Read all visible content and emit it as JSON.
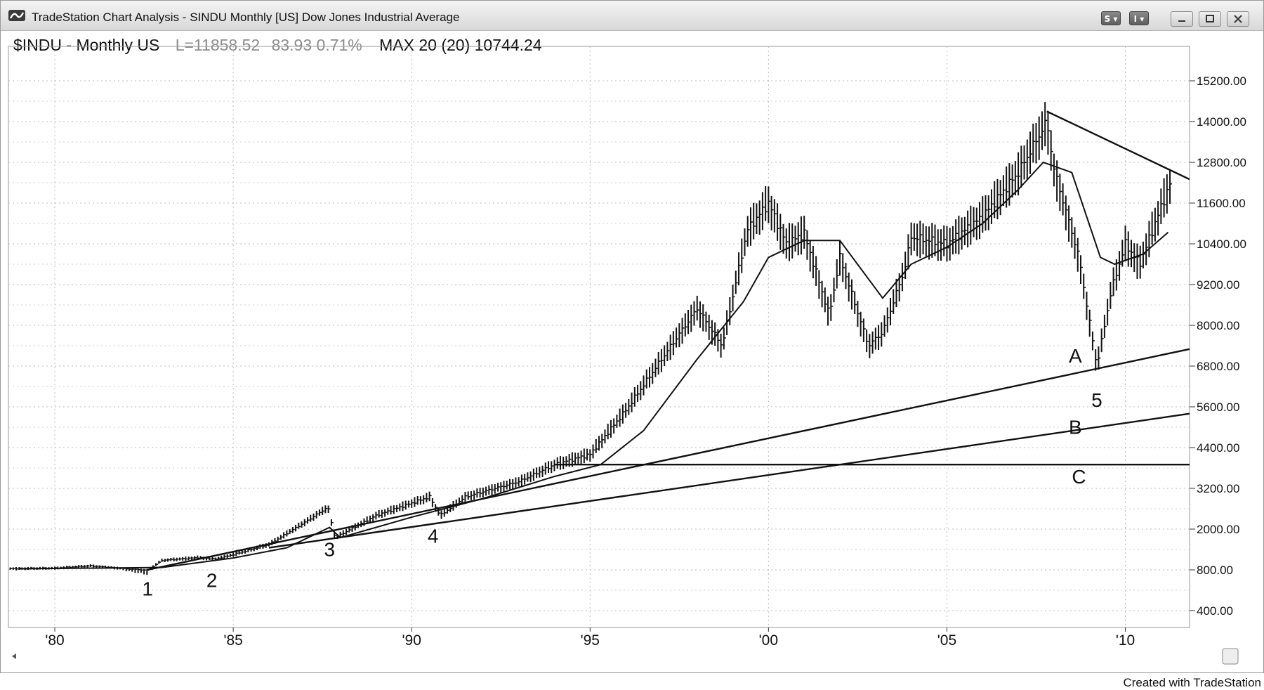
{
  "window": {
    "title": "TradeStation Chart Analysis - SINDU Monthly [US] Dow Jones Industrial Average",
    "toolbar_buttons": [
      "S",
      "I"
    ],
    "controls": [
      "minimize",
      "restore",
      "close"
    ]
  },
  "header": {
    "symbol": "$INDU - Monthly US",
    "last": "L=11858.52",
    "change": "83.93 0.71%",
    "indicator": "MAX 20 (20) 10744.24"
  },
  "footer": {
    "credit": "Created with TradeStation"
  },
  "chart_data": {
    "type": "line",
    "price_axis_labels": [
      "15200.00",
      "14000.00",
      "12800.00",
      "11600.00",
      "10400.00",
      "9200.00",
      "8000.00",
      "6800.00",
      "5600.00",
      "4400.00",
      "3200.00",
      "2000.00",
      "800.00",
      "400.00"
    ],
    "time_axis_labels": [
      "'80",
      "'85",
      "'90",
      "'95",
      "'00",
      "'05",
      "'10"
    ],
    "x_range": [
      1978.7,
      2011.8
    ],
    "series": [
      {
        "kind": "monthly price bars (high/low)",
        "points": [
          [
            1979.0,
            840
          ],
          [
            1980.0,
            850
          ],
          [
            1981.0,
            920
          ],
          [
            1982.0,
            830
          ],
          [
            1982.6,
            790
          ],
          [
            1983.0,
            1080
          ],
          [
            1984.0,
            1160
          ],
          [
            1984.5,
            1120
          ],
          [
            1985.0,
            1250
          ],
          [
            1986.0,
            1550
          ],
          [
            1987.0,
            2200
          ],
          [
            1987.65,
            2650
          ],
          [
            1987.85,
            1750
          ],
          [
            1989.0,
            2400
          ],
          [
            1990.5,
            2950
          ],
          [
            1990.8,
            2400
          ],
          [
            1991.5,
            2950
          ],
          [
            1993.0,
            3400
          ],
          [
            1994.0,
            3900
          ],
          [
            1995.0,
            4200
          ],
          [
            1996.0,
            5500
          ],
          [
            1997.0,
            7000
          ],
          [
            1998.0,
            8500
          ],
          [
            1998.7,
            7400
          ],
          [
            1999.4,
            10800
          ],
          [
            2000.0,
            11600
          ],
          [
            2000.5,
            10400
          ],
          [
            2001.0,
            10700
          ],
          [
            2001.7,
            8300
          ],
          [
            2002.0,
            10000
          ],
          [
            2002.8,
            7400
          ],
          [
            2003.2,
            7800
          ],
          [
            2003.8,
            9600
          ],
          [
            2004.0,
            10600
          ],
          [
            2005.0,
            10400
          ],
          [
            2006.0,
            11200
          ],
          [
            2007.0,
            12500
          ],
          [
            2007.8,
            14000
          ],
          [
            2008.0,
            12600
          ],
          [
            2008.7,
            10000
          ],
          [
            2009.2,
            6800
          ],
          [
            2009.6,
            9000
          ],
          [
            2010.0,
            10400
          ],
          [
            2010.4,
            9800
          ],
          [
            2010.9,
            11200
          ],
          [
            2011.3,
            12300
          ]
        ]
      },
      {
        "name": "MAX 20",
        "points": [
          [
            1979.0,
            830
          ],
          [
            1983.0,
            870
          ],
          [
            1985.0,
            1150
          ],
          [
            1986.5,
            1450
          ],
          [
            1987.7,
            2050
          ],
          [
            1988.0,
            1750
          ],
          [
            1990.0,
            2350
          ],
          [
            1992.0,
            2900
          ],
          [
            1994.0,
            3550
          ],
          [
            1995.3,
            3900
          ],
          [
            1996.5,
            4900
          ],
          [
            1998.0,
            7000
          ],
          [
            1999.3,
            8700
          ],
          [
            2000.0,
            10000
          ],
          [
            2001.0,
            10500
          ],
          [
            2002.0,
            10500
          ],
          [
            2003.2,
            8800
          ],
          [
            2004.0,
            9800
          ],
          [
            2005.0,
            10300
          ],
          [
            2006.0,
            11000
          ],
          [
            2007.0,
            12000
          ],
          [
            2007.7,
            12800
          ],
          [
            2008.5,
            12500
          ],
          [
            2009.3,
            10000
          ],
          [
            2009.7,
            9800
          ],
          [
            2010.5,
            10100
          ],
          [
            2011.2,
            10740
          ]
        ]
      },
      {
        "name": "A",
        "points": [
          [
            1982.6,
            800
          ],
          [
            2011.8,
            7300
          ]
        ]
      },
      {
        "name": "B",
        "points": [
          [
            1986.0,
            1450
          ],
          [
            2011.8,
            5400
          ]
        ]
      },
      {
        "name": "C",
        "points": [
          [
            1994.0,
            3900
          ],
          [
            2011.8,
            3900
          ]
        ]
      },
      {
        "name": "",
        "points": [
          [
            2007.8,
            14300
          ],
          [
            2011.8,
            12300
          ]
        ]
      }
    ],
    "annotations": [
      {
        "label": "1",
        "x": 1982.6,
        "y": 550
      },
      {
        "label": "2",
        "x": 1984.4,
        "y": 630
      },
      {
        "label": "3",
        "x": 1987.7,
        "y": 1200
      },
      {
        "label": "4",
        "x": 1990.6,
        "y": 1600
      },
      {
        "label": "5",
        "x": 2009.2,
        "y": 5600
      },
      {
        "label": "A",
        "x": 2008.6,
        "y": 6900
      },
      {
        "label": "B",
        "x": 2008.6,
        "y": 4800
      },
      {
        "label": "C",
        "x": 2008.7,
        "y": 3350
      }
    ],
    "grid": true
  }
}
